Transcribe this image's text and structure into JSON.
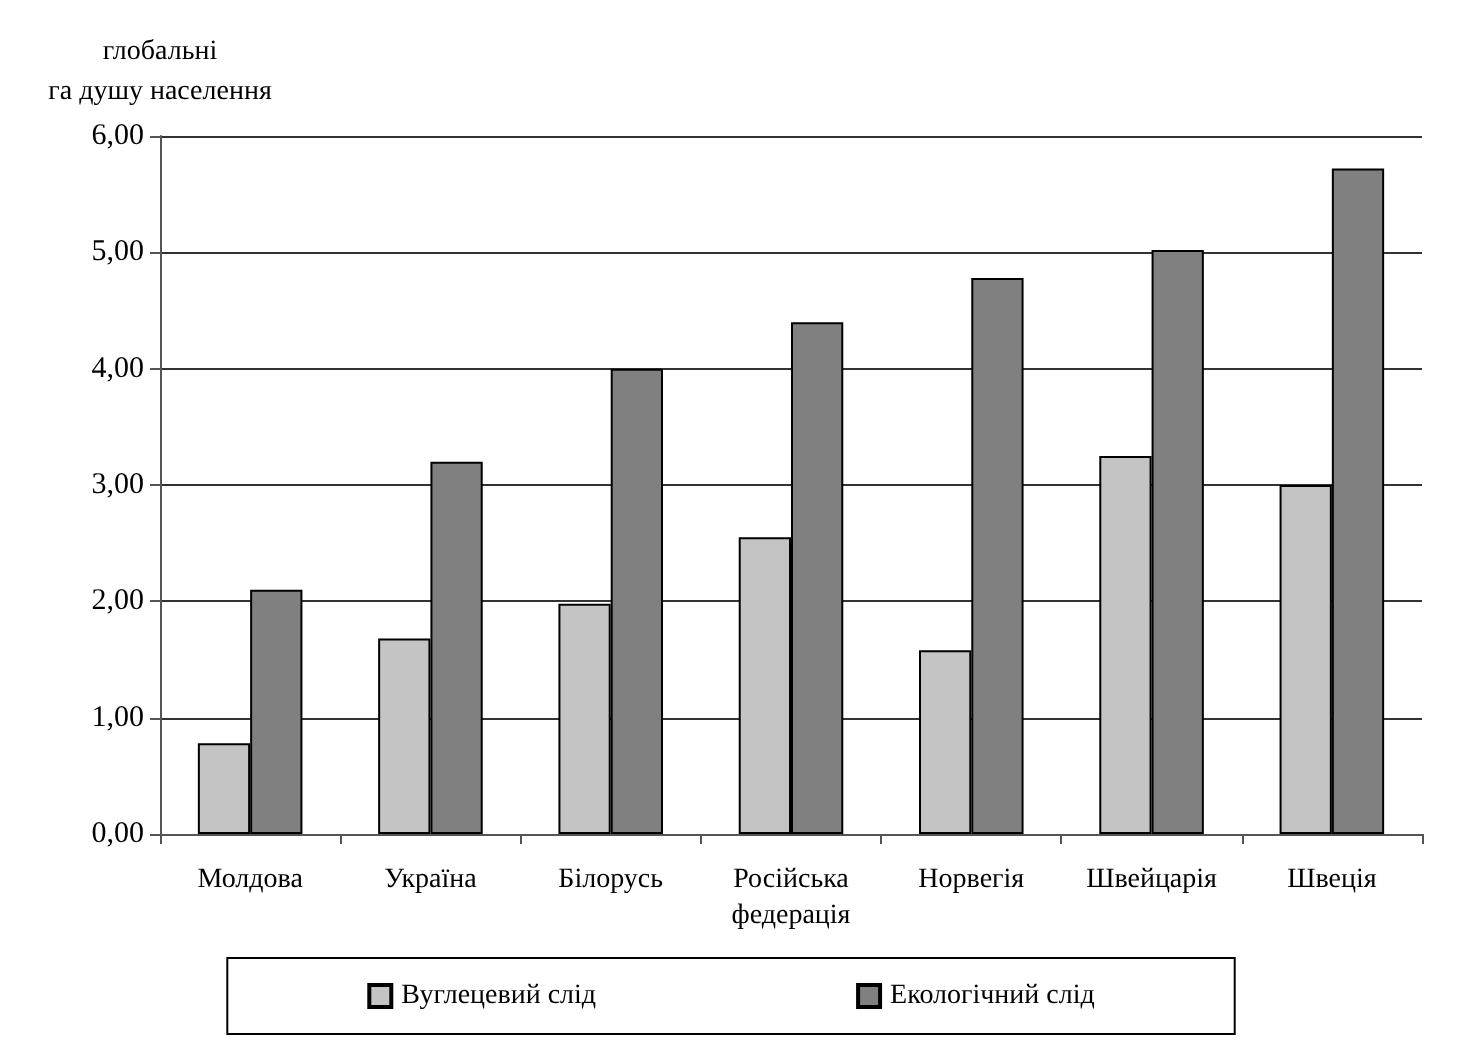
{
  "chart_data": {
    "type": "bar",
    "ylabel": "глобальні га душу населення",
    "categories": [
      "Молдова",
      "Україна",
      "Білорусь",
      "Російська федерація",
      "Норвегія",
      "Швейцарія",
      "Швеція"
    ],
    "series": [
      {
        "name": "Вуглецевий слід",
        "color": "#c4c4c4",
        "values": [
          0.78,
          1.68,
          1.98,
          2.55,
          1.58,
          3.25,
          3.0
        ]
      },
      {
        "name": "Екологічний слід",
        "color": "#808080",
        "values": [
          2.1,
          3.2,
          4.0,
          4.4,
          4.78,
          5.02,
          5.72
        ]
      }
    ],
    "ylim": [
      0,
      6
    ],
    "yticks": [
      {
        "value": 0,
        "label": "0,00"
      },
      {
        "value": 1,
        "label": "1,00"
      },
      {
        "value": 2,
        "label": "2,00"
      },
      {
        "value": 3,
        "label": "3,00"
      },
      {
        "value": 4,
        "label": "4,00"
      },
      {
        "value": 5,
        "label": "5,00"
      },
      {
        "value": 6,
        "label": "6,00"
      }
    ],
    "grid": "y",
    "legend": "bottom"
  }
}
